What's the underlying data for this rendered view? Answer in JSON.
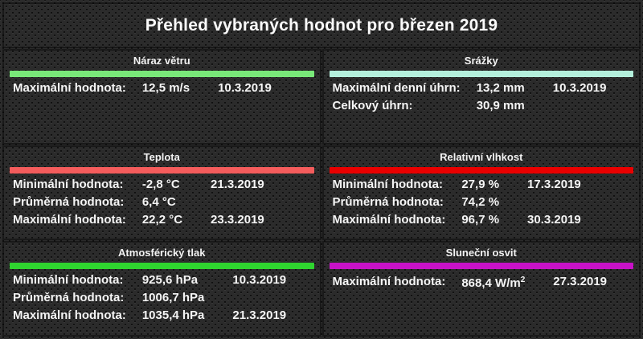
{
  "title": "Přehled vybraných hodnot pro březen 2019",
  "panels": [
    {
      "id": "wind-gust",
      "heading": "Náraz větru",
      "bar_color": "#79e879",
      "rows": [
        {
          "label": "Maximální hodnota:",
          "value": "12,5 m/s",
          "date": "10.3.2019"
        }
      ]
    },
    {
      "id": "precipitation",
      "heading": "Srážky",
      "bar_color": "#b4f0dc",
      "rows": [
        {
          "label": "Maximální denní úhrn:",
          "value": "13,2 mm",
          "date": "10.3.2019"
        },
        {
          "label": "Celkový úhrn:",
          "value": "30,9 mm",
          "date": ""
        }
      ]
    },
    {
      "id": "temperature",
      "heading": "Teplota",
      "bar_color": "#f45c5c",
      "rows": [
        {
          "label": "Minimální hodnota:",
          "value": "-2,8 °C",
          "date": "21.3.2019"
        },
        {
          "label": "Průměrná hodnota:",
          "value": "6,4 °C",
          "date": ""
        },
        {
          "label": "Maximální hodnota:",
          "value": "22,2 °C",
          "date": "23.3.2019"
        }
      ]
    },
    {
      "id": "relative-humidity",
      "heading": "Relativní vlhkost",
      "bar_color": "#e90000",
      "rows": [
        {
          "label": "Minimální hodnota:",
          "value": "27,9 %",
          "date": "17.3.2019"
        },
        {
          "label": "Průměrná hodnota:",
          "value": "74,2 %",
          "date": ""
        },
        {
          "label": "Maximální hodnota:",
          "value": "96,7 %",
          "date": "30.3.2019"
        }
      ]
    },
    {
      "id": "atmospheric-pressure",
      "heading": "Atmosférický tlak",
      "bar_color": "#2fd52f",
      "rows": [
        {
          "label": "Minimální hodnota:",
          "value": "925,6 hPa",
          "date": "10.3.2019"
        },
        {
          "label": "Průměrná hodnota:",
          "value": "1006,7 hPa",
          "date": ""
        },
        {
          "label": "Maximální hodnota:",
          "value": "1035,4 hPa",
          "date": "21.3.2019"
        }
      ]
    },
    {
      "id": "solar-irradiance",
      "heading": "Sluneční osvit",
      "bar_color": "#c712c7",
      "rows": [
        {
          "label": "Maximální hodnota:",
          "value": "868,4 W/m",
          "value_sup": "2",
          "date": "27.3.2019"
        }
      ]
    }
  ]
}
